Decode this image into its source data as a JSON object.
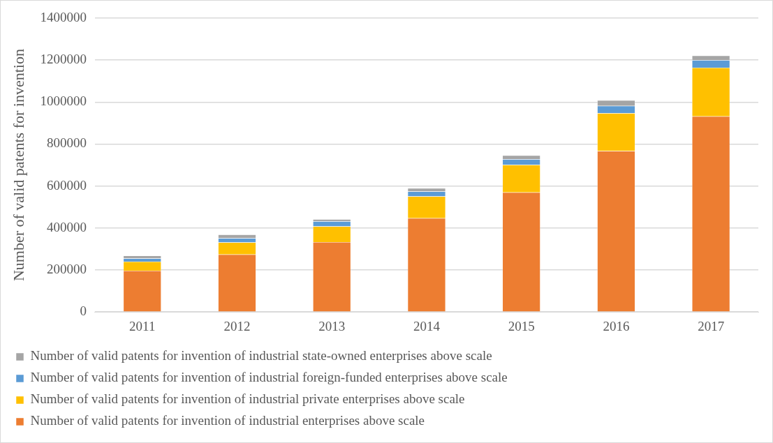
{
  "chart_data": {
    "type": "bar",
    "stacked": true,
    "ylabel": "Number of valid patents for invention",
    "categories": [
      "2011",
      "2012",
      "2013",
      "2014",
      "2015",
      "2016",
      "2017"
    ],
    "series": [
      {
        "name": "Number of valid patents for invention of industrial enterprises above scale",
        "color": "#ed7d31",
        "values": [
          197000,
          274000,
          333000,
          447000,
          570000,
          767000,
          932000
        ]
      },
      {
        "name": "Number of valid patents for invention of industrial private enterprises above scale",
        "color": "#ffc000",
        "values": [
          43000,
          57000,
          75000,
          104000,
          131000,
          180000,
          232000
        ]
      },
      {
        "name": "Number of valid patents for invention of industrial foreign-funded enterprises above scale",
        "color": "#5b9bd5",
        "values": [
          15000,
          20000,
          24000,
          23000,
          27000,
          35000,
          36000
        ]
      },
      {
        "name": "Number of valid patents for invention of industrial state-owned enterprises above scale",
        "color": "#a5a5a5",
        "values": [
          13000,
          18000,
          10000,
          16000,
          18000,
          27000,
          21000
        ]
      }
    ],
    "ylim": [
      0,
      1400000
    ],
    "yticks": [
      0,
      200000,
      400000,
      600000,
      800000,
      1000000,
      1200000,
      1400000
    ],
    "grid": "y",
    "legend": "bottom"
  }
}
